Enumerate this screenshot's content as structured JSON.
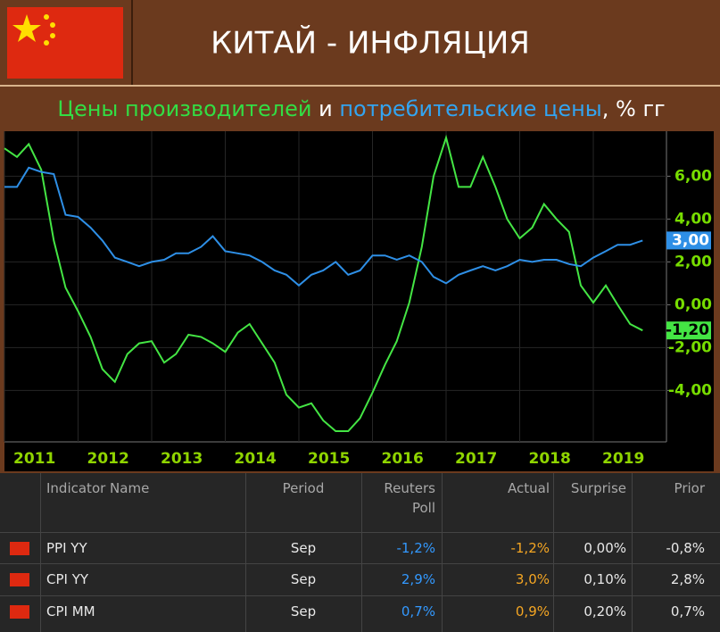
{
  "header": {
    "title": "КИТАЙ - ИНФЛЯЦИЯ"
  },
  "chart_data": {
    "type": "line",
    "subtitle_parts": [
      "и",
      ", % гг"
    ],
    "x": [
      2011,
      2011.17,
      2011.33,
      2011.5,
      2011.67,
      2011.83,
      2012,
      2012.17,
      2012.33,
      2012.5,
      2012.67,
      2012.83,
      2013,
      2013.17,
      2013.33,
      2013.5,
      2013.67,
      2013.83,
      2014,
      2014.17,
      2014.33,
      2014.5,
      2014.67,
      2014.83,
      2015,
      2015.17,
      2015.33,
      2015.5,
      2015.67,
      2015.83,
      2016,
      2016.17,
      2016.33,
      2016.5,
      2016.67,
      2016.83,
      2017,
      2017.17,
      2017.33,
      2017.5,
      2017.67,
      2017.83,
      2018,
      2018.17,
      2018.33,
      2018.5,
      2018.67,
      2018.83,
      2019,
      2019.17,
      2019.33,
      2019.5,
      2019.67
    ],
    "series": [
      {
        "name": "Цены производителей",
        "color": "#44e544",
        "end_label": "-1,20",
        "values": [
          7.3,
          6.9,
          7.5,
          6.3,
          3.0,
          0.8,
          -0.3,
          -1.5,
          -3.0,
          -3.6,
          -2.3,
          -1.8,
          -1.7,
          -2.7,
          -2.3,
          -1.4,
          -1.5,
          -1.8,
          -2.2,
          -1.3,
          -0.9,
          -1.8,
          -2.7,
          -4.2,
          -4.8,
          -4.6,
          -5.4,
          -5.9,
          -5.9,
          -5.3,
          -4.1,
          -2.8,
          -1.7,
          0.1,
          2.7,
          6.0,
          7.8,
          5.5,
          5.5,
          6.9,
          5.5,
          4.0,
          3.1,
          3.6,
          4.7,
          4.0,
          3.4,
          0.9,
          0.1,
          0.9,
          0.0,
          -0.9,
          -1.2
        ]
      },
      {
        "name": "потребительские цены",
        "color": "#2e8fe6",
        "end_label": "3,00",
        "values": [
          5.5,
          5.5,
          6.4,
          6.2,
          6.1,
          4.2,
          4.1,
          3.6,
          3.0,
          2.2,
          2.0,
          1.8,
          2.0,
          2.1,
          2.4,
          2.4,
          2.7,
          3.2,
          2.5,
          2.4,
          2.3,
          2.0,
          1.6,
          1.4,
          0.9,
          1.4,
          1.6,
          2.0,
          1.4,
          1.6,
          2.3,
          2.3,
          2.1,
          2.3,
          2.0,
          1.3,
          1.0,
          1.4,
          1.6,
          1.8,
          1.6,
          1.8,
          2.1,
          2.0,
          2.1,
          2.1,
          1.9,
          1.8,
          2.2,
          2.5,
          2.8,
          2.8,
          3.0
        ]
      }
    ],
    "xlim": [
      2011,
      2020
    ],
    "xticks": [
      2011,
      2012,
      2013,
      2014,
      2015,
      2016,
      2017,
      2018,
      2019
    ],
    "ylim": [
      -6.4,
      8.1
    ],
    "yticks": [
      {
        "value": -4,
        "label": "-4,00"
      },
      {
        "value": -2,
        "label": "-2,00"
      },
      {
        "value": 0,
        "label": "0,00"
      },
      {
        "value": 2,
        "label": "2,00"
      },
      {
        "value": 4,
        "label": "4,00"
      },
      {
        "value": 6,
        "label": "6,00"
      }
    ],
    "grid": true
  },
  "table": {
    "columns": [
      "Indicator Name",
      "Period",
      "Reuters Poll",
      "Actual",
      "Surprise",
      "Prior"
    ],
    "rows": [
      [
        "PPI YY",
        "Sep",
        "-1,2%",
        "-1,2%",
        "0,00%",
        "-0,8%"
      ],
      [
        "CPI YY",
        "Sep",
        "2,9%",
        "3,0%",
        "0,10%",
        "2,8%"
      ],
      [
        "CPI MM",
        "Sep",
        "0,7%",
        "0,9%",
        "0,20%",
        "0,7%"
      ]
    ]
  }
}
